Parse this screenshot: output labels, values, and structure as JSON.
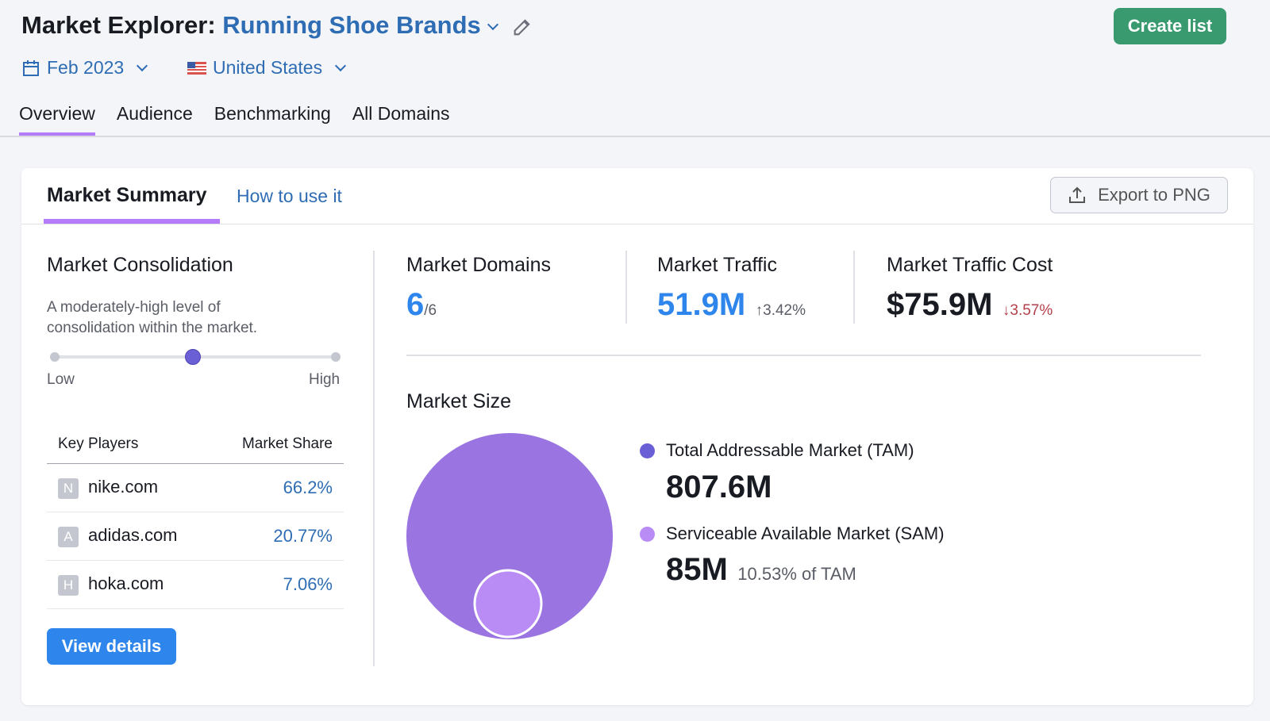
{
  "header": {
    "title_prefix": "Market Explorer:",
    "title_market": "Running Shoe Brands",
    "create_list": "Create list"
  },
  "filters": {
    "date": "Feb 2023",
    "country": "United States"
  },
  "tabs": [
    {
      "label": "Overview",
      "active": true
    },
    {
      "label": "Audience"
    },
    {
      "label": "Benchmarking"
    },
    {
      "label": "All Domains"
    }
  ],
  "summary": {
    "title": "Market Summary",
    "how_to": "How to use it",
    "export": "Export to PNG"
  },
  "consolidation": {
    "title": "Market Consolidation",
    "description": "A moderately-high level of consolidation within the market.",
    "low": "Low",
    "high": "High",
    "level": 0.49
  },
  "key_players": {
    "col1": "Key Players",
    "col2": "Market Share",
    "rows": [
      {
        "initial": "N",
        "domain": "nike.com",
        "share": "66.2%"
      },
      {
        "initial": "A",
        "domain": "adidas.com",
        "share": "20.77%"
      },
      {
        "initial": "H",
        "domain": "hoka.com",
        "share": "7.06%"
      }
    ],
    "view_details": "View details"
  },
  "metrics": {
    "domains": {
      "label": "Market Domains",
      "value": "6",
      "total": "/6"
    },
    "traffic": {
      "label": "Market Traffic",
      "value": "51.9M",
      "change": "↑3.42%"
    },
    "cost": {
      "label": "Market Traffic Cost",
      "value": "$75.9M",
      "change": "↓3.57%"
    }
  },
  "market_size": {
    "title": "Market Size",
    "tam": {
      "label": "Total Addressable Market (TAM)",
      "value": "807.6M",
      "color": "#9a74e0"
    },
    "sam": {
      "label": "Serviceable Available Market (SAM)",
      "value": "85M",
      "note": "10.53% of TAM",
      "color": "#b98cf5"
    }
  },
  "colors": {
    "accent": "#b57cf9",
    "link": "#2e6db3",
    "primary_button": "#2e85ec",
    "create_button": "#3a9a6f",
    "negative": "#b3404a"
  }
}
